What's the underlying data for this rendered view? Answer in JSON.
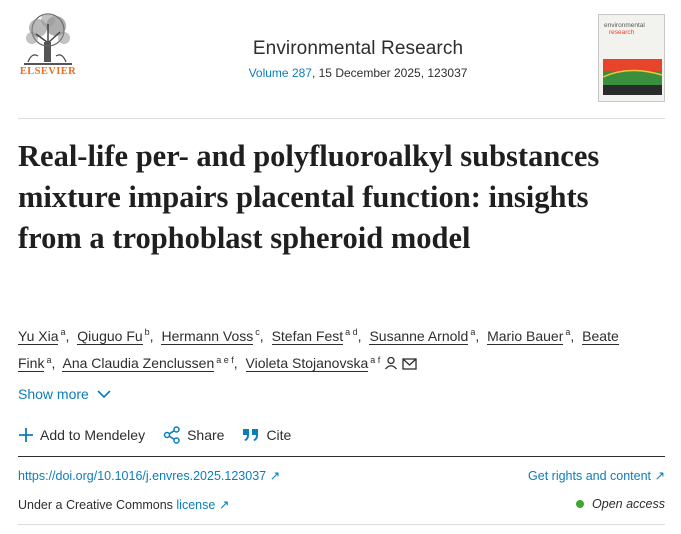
{
  "header": {
    "publisher": "ELSEVIER",
    "journal_name": "Environmental Research",
    "volume_link": "Volume 287",
    "volume_rest": ", 15 December 2025, 123037",
    "cover_title_line1": "environmental",
    "cover_title_line2": "research"
  },
  "article": {
    "title": "Real-life per- and polyfluoroalkyl substances mixture impairs placental function: insights from a trophoblast spheroid model"
  },
  "authors": [
    {
      "name": "Yu Xia",
      "aff": "a"
    },
    {
      "name": "Qiuguo Fu",
      "aff": "b"
    },
    {
      "name": "Hermann Voss",
      "aff": "c"
    },
    {
      "name": "Stefan Fest",
      "aff": "a d"
    },
    {
      "name": "Susanne Arnold",
      "aff": "a"
    },
    {
      "name": "Mario Bauer",
      "aff": "a"
    },
    {
      "name": "Beate Fink",
      "aff": "a"
    },
    {
      "name": "Ana Claudia Zenclussen",
      "aff": "a e f"
    },
    {
      "name": "Violeta Stojanovska",
      "aff": "a f"
    }
  ],
  "show_more": "Show more",
  "actions": {
    "mendeley": "Add to Mendeley",
    "share": "Share",
    "cite": "Cite"
  },
  "links": {
    "doi": "https://doi.org/10.1016/j.envres.2025.123037",
    "rights": "Get rights and content"
  },
  "license": {
    "prefix": "Under a Creative Commons ",
    "link": "license",
    "open_access": "Open access"
  },
  "colors": {
    "link": "#0c7dbb",
    "publisher_orange": "#e9711c",
    "open_access_green": "#3fa535"
  }
}
